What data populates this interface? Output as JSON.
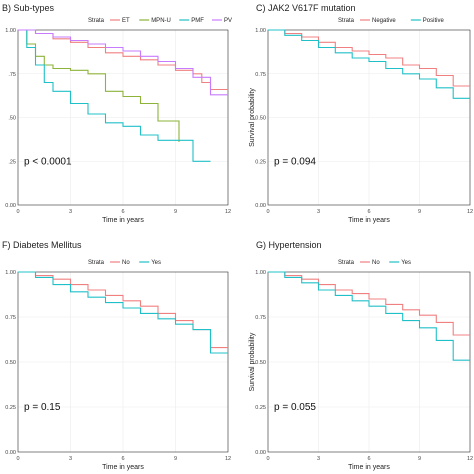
{
  "colors": {
    "red": "#f08080",
    "green": "#8db33a",
    "teal": "#20c0c8",
    "purple": "#c77cff"
  },
  "chart_data": [
    {
      "type": "line",
      "panel_title": "B) Sub-types",
      "legend_title": "Strata",
      "legend_position": "top",
      "xlabel": "Time in years",
      "ylabel": "",
      "xlim": [
        0,
        12
      ],
      "ylim": [
        0,
        1.0
      ],
      "x_ticks": [
        "0",
        "3",
        "6",
        "9",
        "12"
      ],
      "y_ticks": [
        "0.00",
        ".25",
        ".50",
        ".75",
        "1.00"
      ],
      "p_value": "p < 0.0001",
      "series": [
        {
          "name": "ET",
          "color_key": "red",
          "x": [
            0,
            1,
            2,
            3,
            4,
            5,
            6,
            7,
            8,
            9,
            10,
            10.5,
            11,
            12
          ],
          "y": [
            1.0,
            0.98,
            0.95,
            0.93,
            0.9,
            0.87,
            0.85,
            0.83,
            0.8,
            0.77,
            0.75,
            0.7,
            0.66,
            0.66
          ]
        },
        {
          "name": "MPN-U",
          "color_key": "green",
          "x": [
            0,
            0.5,
            1,
            1.5,
            2,
            3,
            4,
            5,
            6,
            7,
            8,
            9,
            9.2
          ],
          "y": [
            1.0,
            0.92,
            0.85,
            0.8,
            0.78,
            0.77,
            0.75,
            0.65,
            0.62,
            0.58,
            0.48,
            0.48,
            0.36
          ]
        },
        {
          "name": "PMF",
          "color_key": "teal",
          "x": [
            0,
            0.5,
            1,
            1.5,
            2,
            3,
            4,
            5,
            6,
            7,
            8,
            9,
            10,
            10.5,
            11
          ],
          "y": [
            1.0,
            0.9,
            0.8,
            0.7,
            0.65,
            0.58,
            0.52,
            0.47,
            0.45,
            0.4,
            0.37,
            0.37,
            0.25,
            0.25,
            0.25
          ]
        },
        {
          "name": "PV",
          "color_key": "purple",
          "x": [
            0,
            1,
            2,
            3,
            4,
            5,
            6,
            7,
            8,
            9,
            10,
            11,
            12
          ],
          "y": [
            1.0,
            0.98,
            0.96,
            0.94,
            0.92,
            0.9,
            0.88,
            0.85,
            0.82,
            0.78,
            0.73,
            0.63,
            0.63
          ]
        }
      ]
    },
    {
      "type": "line",
      "panel_title": "C) JAK2 V617F mutation",
      "legend_title": "Strata",
      "legend_position": "top",
      "xlabel": "Time in years",
      "ylabel": "Survival probability",
      "xlim": [
        0,
        12
      ],
      "ylim": [
        0,
        1.0
      ],
      "x_ticks": [
        "0",
        "3",
        "6",
        "9",
        "12"
      ],
      "y_ticks": [
        "0.00",
        "0.25",
        "0.50",
        "0.75",
        "1.00"
      ],
      "p_value": "p = 0.094",
      "series": [
        {
          "name": "Negative",
          "color_key": "red",
          "x": [
            0,
            1,
            2,
            3,
            4,
            5,
            6,
            7,
            8,
            9,
            10,
            11,
            12
          ],
          "y": [
            1.0,
            0.98,
            0.96,
            0.93,
            0.9,
            0.88,
            0.86,
            0.84,
            0.8,
            0.78,
            0.74,
            0.68,
            0.68
          ]
        },
        {
          "name": "Positive",
          "color_key": "teal",
          "x": [
            0,
            1,
            2,
            3,
            4,
            5,
            6,
            7,
            8,
            9,
            10,
            11,
            12
          ],
          "y": [
            1.0,
            0.97,
            0.94,
            0.9,
            0.87,
            0.84,
            0.82,
            0.78,
            0.75,
            0.72,
            0.67,
            0.61,
            0.61
          ]
        }
      ]
    },
    {
      "type": "line",
      "panel_title": "F) Diabetes Mellitus",
      "legend_title": "Strata",
      "legend_position": "top",
      "xlabel": "Time in years",
      "ylabel": "",
      "xlim": [
        0,
        12
      ],
      "ylim": [
        0,
        1.0
      ],
      "x_ticks": [
        "0",
        "3",
        "6",
        "9",
        "12"
      ],
      "y_ticks": [
        "0.00",
        "0.25",
        "0.50",
        "0.75",
        "1.00"
      ],
      "p_value": "p = 0.15",
      "series": [
        {
          "name": "No",
          "color_key": "red",
          "x": [
            0,
            1,
            2,
            3,
            4,
            5,
            6,
            7,
            8,
            9,
            10,
            11,
            12
          ],
          "y": [
            1.0,
            0.98,
            0.96,
            0.93,
            0.9,
            0.87,
            0.84,
            0.81,
            0.77,
            0.73,
            0.68,
            0.58,
            0.58
          ]
        },
        {
          "name": "Yes",
          "color_key": "teal",
          "x": [
            0,
            1,
            2,
            3,
            4,
            5,
            6,
            7,
            8,
            9,
            10,
            11,
            12
          ],
          "y": [
            1.0,
            0.97,
            0.93,
            0.89,
            0.86,
            0.83,
            0.8,
            0.77,
            0.74,
            0.71,
            0.68,
            0.55,
            0.55
          ]
        }
      ]
    },
    {
      "type": "line",
      "panel_title": "G) Hypertension",
      "legend_title": "Strata",
      "legend_position": "top",
      "xlabel": "Time in years",
      "ylabel": "Survival probability",
      "xlim": [
        0,
        12
      ],
      "ylim": [
        0,
        1.0
      ],
      "x_ticks": [
        "0",
        "3",
        "6",
        "9",
        "12"
      ],
      "y_ticks": [
        "0.00",
        "0.25",
        "0.50",
        "0.75",
        "1.00"
      ],
      "p_value": "p = 0.055",
      "series": [
        {
          "name": "No",
          "color_key": "red",
          "x": [
            0,
            1,
            2,
            3,
            4,
            5,
            6,
            7,
            8,
            9,
            10,
            11,
            12
          ],
          "y": [
            1.0,
            0.98,
            0.96,
            0.93,
            0.9,
            0.88,
            0.85,
            0.82,
            0.79,
            0.76,
            0.72,
            0.65,
            0.65
          ]
        },
        {
          "name": "Yes",
          "color_key": "teal",
          "x": [
            0,
            1,
            2,
            3,
            4,
            5,
            6,
            7,
            8,
            9,
            10,
            11,
            12
          ],
          "y": [
            1.0,
            0.97,
            0.94,
            0.9,
            0.87,
            0.84,
            0.81,
            0.77,
            0.73,
            0.69,
            0.62,
            0.51,
            0.51
          ]
        }
      ]
    }
  ]
}
